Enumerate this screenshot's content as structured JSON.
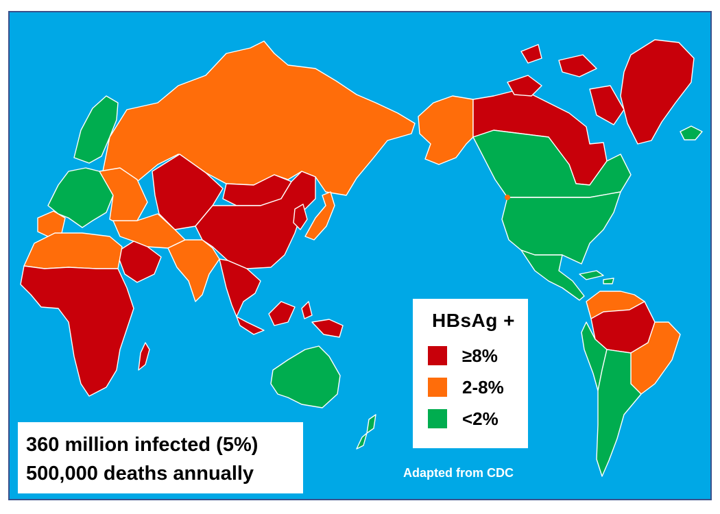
{
  "colors": {
    "ocean": "#00a8e6",
    "high": "#c8000a",
    "intermediate": "#ff6d0a",
    "low": "#00ad4f"
  },
  "legend": {
    "title": "HBsAg +",
    "items": [
      {
        "label": "≥8%",
        "level": "high",
        "color": "#c8000a"
      },
      {
        "label": "2-8%",
        "level": "intermediate",
        "color": "#ff6d0a"
      },
      {
        "label": "<2%",
        "level": "low",
        "color": "#00ad4f"
      }
    ]
  },
  "stats": {
    "line1": "360 million infected (5%)",
    "line2": "500,000 deaths annually"
  },
  "source": "Adapted from CDC",
  "regions": [
    {
      "name": "russia",
      "level": "intermediate"
    },
    {
      "name": "scandinavia",
      "level": "low"
    },
    {
      "name": "western-europe",
      "level": "low"
    },
    {
      "name": "iberia",
      "level": "intermediate"
    },
    {
      "name": "eastern-europe",
      "level": "intermediate"
    },
    {
      "name": "central-asia",
      "level": "high"
    },
    {
      "name": "mongolia",
      "level": "high"
    },
    {
      "name": "china",
      "level": "high"
    },
    {
      "name": "korea",
      "level": "high"
    },
    {
      "name": "japan",
      "level": "intermediate"
    },
    {
      "name": "middle-east",
      "level": "intermediate"
    },
    {
      "name": "arabia",
      "level": "high"
    },
    {
      "name": "india",
      "level": "intermediate"
    },
    {
      "name": "southeast-asia",
      "level": "high"
    },
    {
      "name": "indonesia",
      "level": "high"
    },
    {
      "name": "new-guinea",
      "level": "high"
    },
    {
      "name": "north-africa",
      "level": "intermediate"
    },
    {
      "name": "sub-saharan-africa",
      "level": "high"
    },
    {
      "name": "madagascar",
      "level": "high"
    },
    {
      "name": "australia",
      "level": "low"
    },
    {
      "name": "new-zealand",
      "level": "low"
    },
    {
      "name": "alaska",
      "level": "intermediate"
    },
    {
      "name": "northern-canada",
      "level": "high"
    },
    {
      "name": "canada",
      "level": "low"
    },
    {
      "name": "arctic-islands",
      "level": "high"
    },
    {
      "name": "greenland",
      "level": "high"
    },
    {
      "name": "iceland",
      "level": "low"
    },
    {
      "name": "usa",
      "level": "low"
    },
    {
      "name": "central-america",
      "level": "low"
    },
    {
      "name": "caribbean",
      "level": "low"
    },
    {
      "name": "northern-south-america",
      "level": "intermediate"
    },
    {
      "name": "amazon",
      "level": "high"
    },
    {
      "name": "brazil",
      "level": "intermediate"
    },
    {
      "name": "andes",
      "level": "low"
    },
    {
      "name": "southern-cone",
      "level": "low"
    }
  ]
}
